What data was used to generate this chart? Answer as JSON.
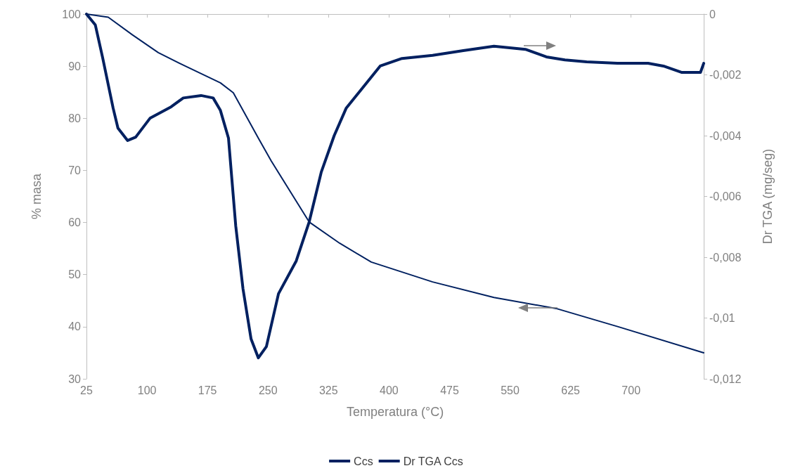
{
  "chart_data": {
    "type": "line",
    "xlabel": "Temperatura (°C)",
    "ylabel": "% masa",
    "y2label": "Dr TGA (mg/seg)",
    "xlim": [
      25,
      790
    ],
    "xticks": [
      25,
      100,
      175,
      250,
      325,
      400,
      475,
      550,
      625,
      700
    ],
    "ylim": [
      30,
      100
    ],
    "yticks": [
      30,
      40,
      50,
      60,
      70,
      80,
      90,
      100
    ],
    "y2lim": [
      -0.012,
      0
    ],
    "y2ticks": [
      {
        "value": -0.012,
        "label": "-0,012"
      },
      {
        "value": -0.01,
        "label": "-0,01"
      },
      {
        "value": -0.008,
        "label": "-0,008"
      },
      {
        "value": -0.006,
        "label": "-0,006"
      },
      {
        "value": -0.004,
        "label": "-0,004"
      },
      {
        "value": -0.002,
        "label": "-0,002"
      },
      {
        "value": 0,
        "label": "0"
      }
    ],
    "grid": false,
    "legend": "bottom",
    "marker": "none",
    "line_style": "solid",
    "series": [
      {
        "name": "Ccs",
        "color": "#002060",
        "x": [
          25,
          52,
          82,
          114,
          145,
          191,
          207,
          238,
          254,
          285,
          301,
          339,
          378,
          454,
          530,
          607,
          684,
          790
        ],
        "values": [
          100,
          99.4,
          96,
          92.6,
          90.2,
          86.8,
          84.9,
          76.2,
          71.8,
          64.1,
          60.1,
          56.0,
          52.4,
          48.6,
          45.6,
          43.5,
          40.0,
          35.0
        ]
      },
      {
        "name": "Dr TGA Ccs",
        "color": "#002060",
        "axis": "y2",
        "x": [
          25,
          36,
          45,
          58,
          64,
          76,
          86,
          104,
          130,
          145,
          167,
          182,
          191,
          201,
          210,
          219,
          229,
          238,
          248,
          263,
          285,
          301,
          316,
          332,
          347,
          366,
          389,
          416,
          454,
          492,
          530,
          569,
          595,
          618,
          645,
          683,
          721,
          740,
          763,
          786,
          790
        ],
        "values": [
          0,
          -0.00036,
          -0.00143,
          -0.00309,
          -0.00375,
          -0.00416,
          -0.00405,
          -0.00342,
          -0.00305,
          -0.00276,
          -0.00268,
          -0.00276,
          -0.00317,
          -0.00408,
          -0.00697,
          -0.00904,
          -0.01069,
          -0.01131,
          -0.01094,
          -0.0092,
          -0.00812,
          -0.00684,
          -0.0052,
          -0.004,
          -0.00309,
          -0.00247,
          -0.00171,
          -0.00146,
          -0.00136,
          -0.0012,
          -0.00106,
          -0.00116,
          -0.00141,
          -0.00151,
          -0.00157,
          -0.00162,
          -0.00162,
          -0.00171,
          -0.00192,
          -0.00192,
          -0.00162
        ]
      }
    ]
  }
}
